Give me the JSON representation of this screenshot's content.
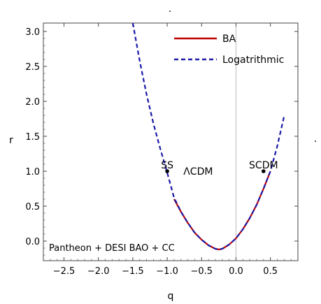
{
  "chart_data": {
    "type": "line",
    "xlabel": "q",
    "ylabel": "r",
    "xlim": [
      -2.8,
      0.9
    ],
    "ylim": [
      -0.28,
      3.12
    ],
    "x_ticks": [
      -2.5,
      -2.0,
      -1.5,
      -1.0,
      -0.5,
      0.0,
      0.5
    ],
    "x_tick_labels": [
      "−2.5",
      "−2.0",
      "−1.5",
      "−1.0",
      "−0.5",
      "0.0",
      "0.5"
    ],
    "y_ticks": [
      0.0,
      0.5,
      1.0,
      1.5,
      2.0,
      2.5,
      3.0
    ],
    "y_tick_labels": [
      "0.0",
      "0.5",
      "1.0",
      "1.5",
      "2.0",
      "2.5",
      "3.0"
    ],
    "series": [
      {
        "name": "BA",
        "color": "#c00000",
        "style": "solid",
        "x": [
          -0.9,
          -0.8,
          -0.7,
          -0.6,
          -0.5,
          -0.4,
          -0.3,
          -0.25,
          -0.2,
          -0.1,
          0.0,
          0.1,
          0.2,
          0.3,
          0.4,
          0.5
        ],
        "y": [
          0.6,
          0.42,
          0.26,
          0.12,
          0.02,
          -0.06,
          -0.11,
          -0.12,
          -0.11,
          -0.05,
          0.04,
          0.17,
          0.33,
          0.52,
          0.75,
          1.0
        ]
      },
      {
        "name": "Logatrithmic",
        "color": "#1a1aa8",
        "style": "dashed",
        "x": [
          -1.5,
          -1.4,
          -1.3,
          -1.2,
          -1.1,
          -1.0,
          -0.9,
          -0.8,
          -0.7,
          -0.6,
          -0.5,
          -0.4,
          -0.3,
          -0.25,
          -0.2,
          -0.1,
          0.0,
          0.1,
          0.2,
          0.3,
          0.4,
          0.5,
          0.6,
          0.7
        ],
        "y": [
          3.12,
          2.58,
          2.1,
          1.68,
          1.32,
          0.98,
          0.62,
          0.42,
          0.26,
          0.12,
          0.02,
          -0.06,
          -0.11,
          -0.12,
          -0.11,
          -0.05,
          0.04,
          0.17,
          0.33,
          0.52,
          0.75,
          1.0,
          1.36,
          1.79
        ]
      }
    ],
    "points": [
      {
        "label": "SS",
        "x": -1.0,
        "y": 1.0
      },
      {
        "label": "SCDM",
        "x": 0.4,
        "y": 1.0
      }
    ],
    "annotations": [
      {
        "text": "ΛCDM",
        "x": -0.55,
        "y": 1.0
      },
      {
        "text": "Pantheon + DESI BAO + CC",
        "x": -2.25,
        "y": -0.1
      }
    ],
    "legend_position": "top-right",
    "grid": false,
    "marker_dots": [
      "."
    ]
  }
}
